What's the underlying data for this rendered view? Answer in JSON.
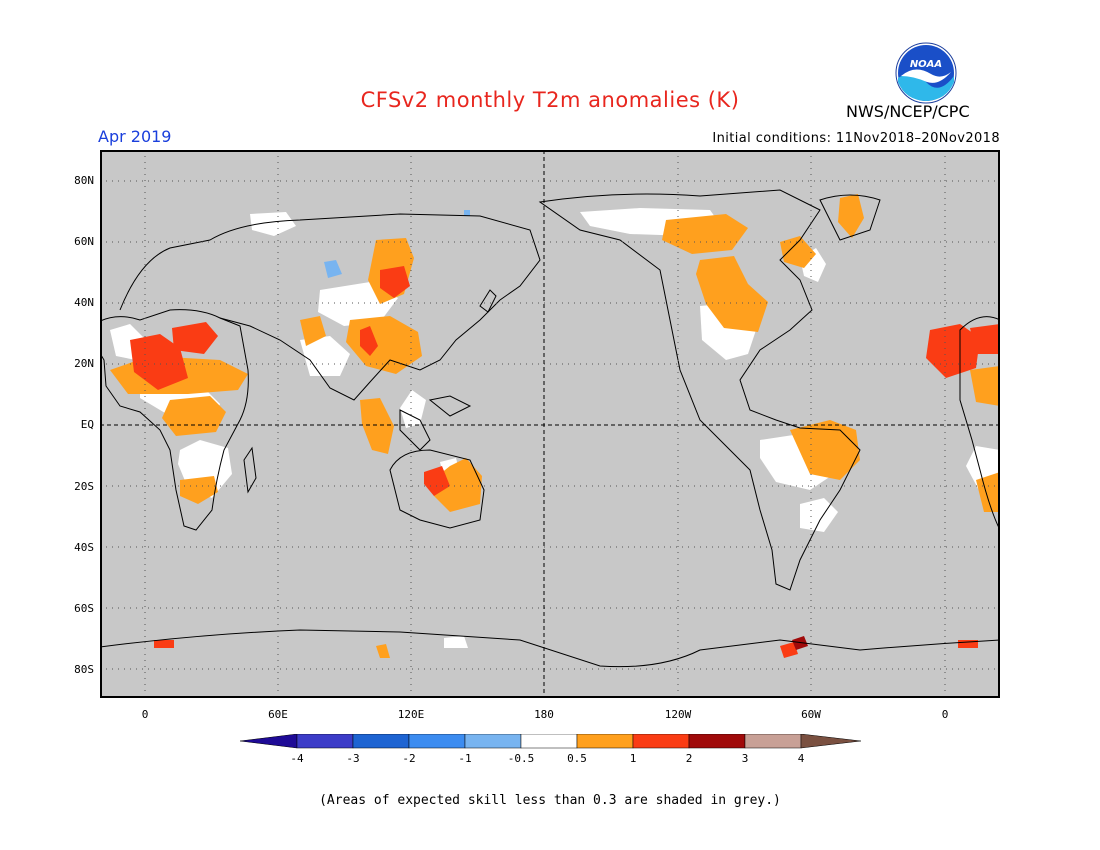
{
  "title": "CFSv2 monthly T2m anomalies (K)",
  "valid_month": "Apr 2019",
  "initial_conditions": "Initial conditions: 11Nov2018–20Nov2018",
  "organization": "NWS/NCEP/CPC",
  "logo_text": "NOAA",
  "lat_labels": [
    "80N",
    "60N",
    "40N",
    "20N",
    "EQ",
    "20S",
    "40S",
    "60S",
    "80S"
  ],
  "lon_labels": [
    "0",
    "60E",
    "120E",
    "180",
    "120W",
    "60W",
    "0"
  ],
  "colorbar": {
    "labels": [
      "-4",
      "-3",
      "-2",
      "-1",
      "-0.5",
      "0.5",
      "1",
      "2",
      "3",
      "4"
    ],
    "colors": [
      "#1e0a96",
      "#3c3cc8",
      "#1e64d2",
      "#3c8cf0",
      "#78b4f0",
      "#ffffff",
      "#ffa01e",
      "#fa3c14",
      "#a00a0a",
      "#c8a096",
      "#7a5040"
    ]
  },
  "colors": {
    "map_background": "#c8c8c8",
    "title": "#e8261e",
    "valid_month": "#1a3fdc"
  },
  "footnote": "(Areas of expected skill less than 0.3 are shaded in grey.)"
}
